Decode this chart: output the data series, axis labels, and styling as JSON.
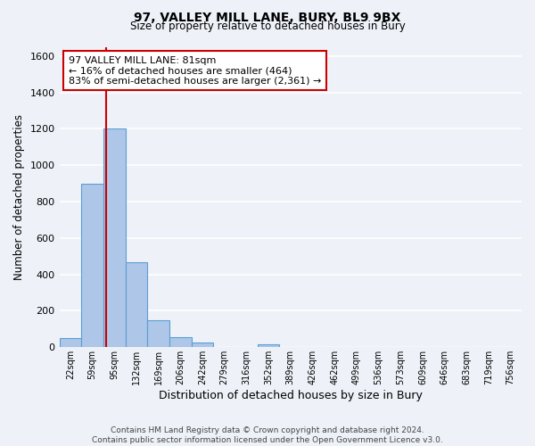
{
  "title": "97, VALLEY MILL LANE, BURY, BL9 9BX",
  "subtitle": "Size of property relative to detached houses in Bury",
  "xlabel": "Distribution of detached houses by size in Bury",
  "ylabel": "Number of detached properties",
  "bin_labels": [
    "22sqm",
    "59sqm",
    "95sqm",
    "132sqm",
    "169sqm",
    "206sqm",
    "242sqm",
    "279sqm",
    "316sqm",
    "352sqm",
    "389sqm",
    "426sqm",
    "462sqm",
    "499sqm",
    "536sqm",
    "573sqm",
    "609sqm",
    "646sqm",
    "683sqm",
    "719sqm",
    "756sqm"
  ],
  "bar_heights": [
    50,
    900,
    1200,
    465,
    150,
    55,
    25,
    0,
    0,
    15,
    0,
    0,
    0,
    0,
    0,
    0,
    0,
    0,
    0,
    0,
    0
  ],
  "bar_color": "#aec6e8",
  "bar_edge_color": "#5a9fd4",
  "property_line_bin_index": 1.62,
  "ylim": [
    0,
    1650
  ],
  "yticks": [
    0,
    200,
    400,
    600,
    800,
    1000,
    1200,
    1400,
    1600
  ],
  "annotation_title": "97 VALLEY MILL LANE: 81sqm",
  "annotation_line1": "← 16% of detached houses are smaller (464)",
  "annotation_line2": "83% of semi-detached houses are larger (2,361) →",
  "annotation_box_color": "#ffffff",
  "annotation_box_edge": "#cc0000",
  "footer_line1": "Contains HM Land Registry data © Crown copyright and database right 2024.",
  "footer_line2": "Contains public sector information licensed under the Open Government Licence v3.0.",
  "background_color": "#eef2f8",
  "grid_color": "#ffffff",
  "red_line_color": "#cc0000"
}
